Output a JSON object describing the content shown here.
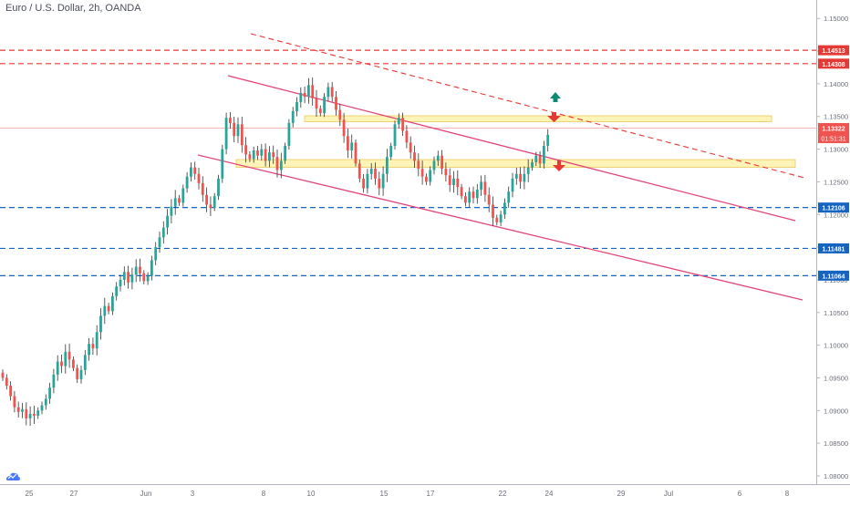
{
  "header": {
    "symbol_title": "Euro / U.S. Dollar, 2h, OANDA"
  },
  "icons": {
    "logo": "tradingview-cloud-icon",
    "bullish_arrow": "arrow-up-icon",
    "bearish_arrow": "arrow-down-icon"
  },
  "colors": {
    "bull": "#26a69a",
    "bear": "#ef5350",
    "wick": "#333333",
    "channel": "#e0457b",
    "dashed_red": "#e53935",
    "dashed_blue": "#1565c0",
    "zone_fill": "#fff3b0",
    "zone_stroke": "#e6c34d",
    "arrow_up": "#0f8a72",
    "arrow_down": "#e53935",
    "grid": "#e0e3eb"
  },
  "chart_data": {
    "type": "candlestick",
    "title": "Euro / U.S. Dollar, 2h, OANDA",
    "xlabel": "",
    "ylabel": "",
    "x_ticks": [
      "25",
      "27",
      "Jun",
      "3",
      "8",
      "10",
      "15",
      "17",
      "22",
      "24",
      "29",
      "Jul",
      "6",
      "8"
    ],
    "y_ticks": [
      "1.15000",
      "1.14500",
      "1.14000",
      "1.13500",
      "1.13000",
      "1.12500",
      "1.12000",
      "1.11500",
      "1.11000",
      "1.10500",
      "1.10000",
      "1.09500",
      "1.09000",
      "1.08500",
      "1.08000"
    ],
    "ylim": [
      1.0793,
      1.1524
    ],
    "price_levels": [
      {
        "value": 1.14513,
        "label": "1.14513",
        "style": "dashed",
        "color": "#e53935"
      },
      {
        "value": 1.14308,
        "label": "1.14308",
        "style": "dashed",
        "color": "#e53935"
      },
      {
        "value": 1.12106,
        "label": "1.12106",
        "style": "dashed",
        "color": "#1565c0"
      },
      {
        "value": 1.11481,
        "label": "1.11481",
        "style": "dashed",
        "color": "#1565c0"
      },
      {
        "value": 1.11064,
        "label": "1.11064",
        "style": "dashed",
        "color": "#1565c0"
      }
    ],
    "current_price": {
      "value": 1.13322,
      "label": "1.13322",
      "countdown": "01:51:31"
    },
    "zones": [
      {
        "from": 1.1342,
        "to": 1.1351
      },
      {
        "from": 1.1272,
        "to": 1.1284
      }
    ],
    "trendlines": [
      {
        "name": "channel-upper",
        "style": "solid"
      },
      {
        "name": "channel-lower",
        "style": "solid"
      },
      {
        "name": "descending-resistance",
        "style": "dashed"
      }
    ],
    "candle_closes": [
      1.095,
      1.0938,
      1.0922,
      1.0905,
      1.0898,
      1.0902,
      1.0888,
      1.0895,
      1.0892,
      1.09,
      1.0908,
      1.0918,
      1.0935,
      1.0955,
      1.0975,
      1.0968,
      1.099,
      1.0978,
      1.0965,
      1.0948,
      1.0962,
      1.0985,
      1.1002,
      1.0995,
      1.102,
      1.1045,
      1.106,
      1.1052,
      1.1075,
      1.109,
      1.11,
      1.1112,
      1.1096,
      1.1108,
      1.112,
      1.111,
      1.1098,
      1.1106,
      1.113,
      1.115,
      1.1165,
      1.118,
      1.1198,
      1.1212,
      1.1225,
      1.1218,
      1.124,
      1.1258,
      1.1272,
      1.1262,
      1.1248,
      1.123,
      1.1215,
      1.121,
      1.1228,
      1.1255,
      1.13,
      1.1348,
      1.134,
      1.132,
      1.1338,
      1.1306,
      1.1292,
      1.1285,
      1.1298,
      1.129,
      1.13,
      1.1282,
      1.1295,
      1.1288,
      1.1268,
      1.1282,
      1.1305,
      1.134,
      1.1358,
      1.1372,
      1.1386,
      1.138,
      1.1398,
      1.1378,
      1.1362,
      1.1355,
      1.138,
      1.1395,
      1.138,
      1.136,
      1.1345,
      1.132,
      1.1298,
      1.131,
      1.1278,
      1.1255,
      1.124,
      1.1262,
      1.127,
      1.1255,
      1.124,
      1.1262,
      1.1288,
      1.1305,
      1.1338,
      1.1348,
      1.1328,
      1.131,
      1.1295,
      1.1282,
      1.127,
      1.1258,
      1.125,
      1.1268,
      1.1282,
      1.129,
      1.127,
      1.126,
      1.1245,
      1.1255,
      1.1242,
      1.1228,
      1.1218,
      1.1235,
      1.1225,
      1.1238,
      1.125,
      1.123,
      1.1215,
      1.1195,
      1.1188,
      1.12,
      1.1218,
      1.1235,
      1.1255,
      1.1262,
      1.125,
      1.1262,
      1.1272,
      1.128,
      1.129,
      1.1278,
      1.1305,
      1.1322
    ]
  }
}
